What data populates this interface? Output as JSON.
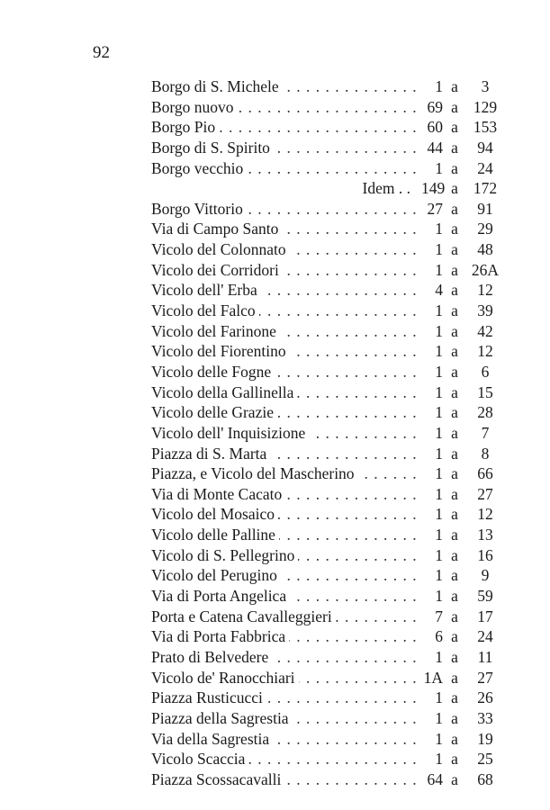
{
  "page_number": "92",
  "entries": [
    {
      "name": "Borgo di S. Michele",
      "from": "1",
      "to": "3"
    },
    {
      "name": "Borgo nuovo",
      "from": "69",
      "to": "129"
    },
    {
      "name": "Borgo Pio",
      "from": "60",
      "to": "153"
    },
    {
      "name": "Borgo di S. Spirito",
      "from": "44",
      "to": "94"
    },
    {
      "name": "Borgo vecchio",
      "from": "1",
      "to": "24"
    },
    {
      "name": "Idem . .",
      "from": "149",
      "to": "172",
      "idem": true
    },
    {
      "name": "Borgo Vittorio",
      "from": "27",
      "to": "91"
    },
    {
      "name": "Via di Campo Santo",
      "from": "1",
      "to": "29"
    },
    {
      "name": "Vicolo del Colonnato",
      "from": "1",
      "to": "48"
    },
    {
      "name": "Vicolo dei Corridori",
      "from": "1",
      "to": "26A"
    },
    {
      "name": "Vicolo dell' Erba",
      "from": "4",
      "to": "12"
    },
    {
      "name": "Vicolo del Falco",
      "from": "1",
      "to": "39"
    },
    {
      "name": "Vicolo del Farinone",
      "from": "1",
      "to": "42"
    },
    {
      "name": "Vicolo del Fiorentino",
      "from": "1",
      "to": "12"
    },
    {
      "name": "Vicolo delle Fogne",
      "from": "1",
      "to": "6"
    },
    {
      "name": "Vicolo della Gallinella",
      "from": "1",
      "to": "15"
    },
    {
      "name": "Vicolo delle Grazie",
      "from": "1",
      "to": "28"
    },
    {
      "name": "Vicolo dell' Inquisizione",
      "from": "1",
      "to": "7"
    },
    {
      "name": "Piazza di S. Marta",
      "from": "1",
      "to": "8"
    },
    {
      "name": "Piazza, e Vicolo del Mascherino",
      "from": "1",
      "to": "66"
    },
    {
      "name": "Via di Monte Cacato",
      "from": "1",
      "to": "27"
    },
    {
      "name": "Vicolo del Mosaico",
      "from": "1",
      "to": "12"
    },
    {
      "name": "Vicolo delle Palline",
      "from": "1",
      "to": "13"
    },
    {
      "name": "Vicolo di S. Pellegrino",
      "from": "1",
      "to": "16"
    },
    {
      "name": "Vicolo del Perugino",
      "from": "1",
      "to": "9"
    },
    {
      "name": "Via di Porta Angelica",
      "from": "1",
      "to": "59"
    },
    {
      "name": "Porta e Catena Cavalleggieri",
      "from": "7",
      "to": "17"
    },
    {
      "name": "Via di Porta Fabbrica",
      "from": "6",
      "to": "24"
    },
    {
      "name": "Prato di Belvedere",
      "from": "1",
      "to": "11"
    },
    {
      "name": "Vicolo de' Ranocchiari",
      "from": "1A",
      "to": "27"
    },
    {
      "name": "Piazza Rusticucci",
      "from": "1",
      "to": "26"
    },
    {
      "name": "Piazza della Sagrestia",
      "from": "1",
      "to": "33"
    },
    {
      "name": "Via della Sagrestia",
      "from": "1",
      "to": "19"
    },
    {
      "name": "Vicolo Scaccia",
      "from": "1",
      "to": "25"
    },
    {
      "name": "Piazza Scossacavalli",
      "from": "64",
      "to": "68"
    }
  ],
  "connector": "a"
}
